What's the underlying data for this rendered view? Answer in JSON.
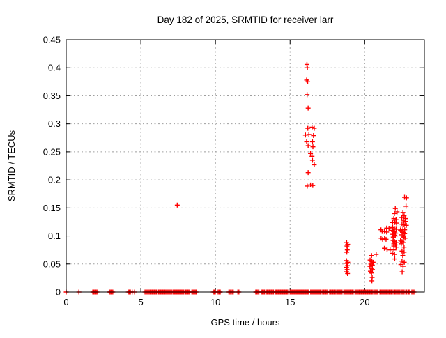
{
  "chart_data": {
    "type": "scatter",
    "title": "Day 182 of 2025, SRMTID for receiver larr",
    "xlabel": "GPS time / hours",
    "ylabel": "SRMTID / TECUs",
    "xlim": [
      0,
      24
    ],
    "ylim": [
      0,
      0.45
    ],
    "xticks": [
      0,
      5,
      10,
      15,
      20
    ],
    "xtick_labels": [
      "0",
      "5",
      "10",
      "15",
      "20"
    ],
    "yticks": [
      0,
      0.05,
      0.1,
      0.15,
      0.2,
      0.25,
      0.3,
      0.35,
      0.4,
      0.45
    ],
    "ytick_labels": [
      "0",
      "0.05",
      "0.1",
      "0.15",
      "0.2",
      "0.25",
      "0.3",
      "0.35",
      "0.4",
      "0.45"
    ],
    "grid": true,
    "grid_color": "#9e9e9e",
    "marker": "plus",
    "marker_color": "#ff0000",
    "axis_color": "#000000",
    "legend": "none",
    "series": [
      {
        "name": "SRMTID",
        "points": [
          [
            7.44,
            0.155
          ],
          [
            16.13,
            0.406
          ],
          [
            16.16,
            0.4
          ],
          [
            16.11,
            0.378
          ],
          [
            16.18,
            0.375
          ],
          [
            16.14,
            0.352
          ],
          [
            16.21,
            0.328
          ],
          [
            16.19,
            0.292
          ],
          [
            16.47,
            0.294
          ],
          [
            16.62,
            0.292
          ],
          [
            16.03,
            0.28
          ],
          [
            16.26,
            0.281
          ],
          [
            16.57,
            0.279
          ],
          [
            16.11,
            0.268
          ],
          [
            16.5,
            0.268
          ],
          [
            16.21,
            0.261
          ],
          [
            16.53,
            0.259
          ],
          [
            16.37,
            0.247
          ],
          [
            16.47,
            0.242
          ],
          [
            16.5,
            0.235
          ],
          [
            16.62,
            0.227
          ],
          [
            16.21,
            0.213
          ],
          [
            16.15,
            0.189
          ],
          [
            16.37,
            0.191
          ],
          [
            16.52,
            0.19
          ],
          [
            18.79,
            0.088
          ],
          [
            18.86,
            0.085
          ],
          [
            18.81,
            0.082
          ],
          [
            18.83,
            0.075
          ],
          [
            18.8,
            0.071
          ],
          [
            18.78,
            0.056
          ],
          [
            18.86,
            0.053
          ],
          [
            18.8,
            0.051
          ],
          [
            18.84,
            0.047
          ],
          [
            18.78,
            0.044
          ],
          [
            18.82,
            0.04
          ],
          [
            18.79,
            0.036
          ],
          [
            18.85,
            0.033
          ],
          [
            20.77,
            0.067
          ],
          [
            20.46,
            0.065
          ],
          [
            20.36,
            0.057
          ],
          [
            20.47,
            0.055
          ],
          [
            20.56,
            0.053
          ],
          [
            20.41,
            0.05
          ],
          [
            20.51,
            0.048
          ],
          [
            20.35,
            0.046
          ],
          [
            20.43,
            0.042
          ],
          [
            20.52,
            0.04
          ],
          [
            20.38,
            0.037
          ],
          [
            20.46,
            0.034
          ],
          [
            20.5,
            0.026
          ],
          [
            20.48,
            0.02
          ],
          [
            22.67,
            0.169
          ],
          [
            22.8,
            0.168
          ],
          [
            22.77,
            0.153
          ],
          [
            22.05,
            0.149
          ],
          [
            22.17,
            0.143
          ],
          [
            22.56,
            0.142
          ],
          [
            21.99,
            0.14
          ],
          [
            22.64,
            0.136
          ],
          [
            22.49,
            0.133
          ],
          [
            22.72,
            0.131
          ],
          [
            21.95,
            0.131
          ],
          [
            22.1,
            0.129
          ],
          [
            22.6,
            0.127
          ],
          [
            22.73,
            0.126
          ],
          [
            21.87,
            0.124
          ],
          [
            22.02,
            0.124
          ],
          [
            22.13,
            0.123
          ],
          [
            22.5,
            0.121
          ],
          [
            22.64,
            0.12
          ],
          [
            22.79,
            0.119
          ],
          [
            21.47,
            0.114
          ],
          [
            21.63,
            0.113
          ],
          [
            21.87,
            0.115
          ],
          [
            21.98,
            0.113
          ],
          [
            22.1,
            0.112
          ],
          [
            22.42,
            0.112
          ],
          [
            22.56,
            0.112
          ],
          [
            22.68,
            0.111
          ],
          [
            21.09,
            0.111
          ],
          [
            21.17,
            0.108
          ],
          [
            21.32,
            0.108
          ],
          [
            21.47,
            0.107
          ],
          [
            21.85,
            0.11
          ],
          [
            21.93,
            0.108
          ],
          [
            22.0,
            0.107
          ],
          [
            22.07,
            0.105
          ],
          [
            21.88,
            0.103
          ],
          [
            21.97,
            0.101
          ],
          [
            22.05,
            0.1
          ],
          [
            21.91,
            0.098
          ],
          [
            22.4,
            0.11
          ],
          [
            22.5,
            0.108
          ],
          [
            22.6,
            0.106
          ],
          [
            22.68,
            0.104
          ],
          [
            22.45,
            0.102
          ],
          [
            22.55,
            0.1
          ],
          [
            22.62,
            0.098
          ],
          [
            22.7,
            0.096
          ],
          [
            21.1,
            0.096
          ],
          [
            21.2,
            0.094
          ],
          [
            21.33,
            0.096
          ],
          [
            21.43,
            0.094
          ],
          [
            21.9,
            0.092
          ],
          [
            22.0,
            0.09
          ],
          [
            22.1,
            0.088
          ],
          [
            21.95,
            0.086
          ],
          [
            22.05,
            0.084
          ],
          [
            22.4,
            0.092
          ],
          [
            22.5,
            0.09
          ],
          [
            22.6,
            0.088
          ],
          [
            22.45,
            0.086
          ],
          [
            21.95,
            0.082
          ],
          [
            22.1,
            0.08
          ],
          [
            22.64,
            0.08
          ],
          [
            21.32,
            0.078
          ],
          [
            21.5,
            0.076
          ],
          [
            21.7,
            0.075
          ],
          [
            21.96,
            0.075
          ],
          [
            21.85,
            0.069
          ],
          [
            22.0,
            0.067
          ],
          [
            22.5,
            0.073
          ],
          [
            22.64,
            0.071
          ],
          [
            22.55,
            0.065
          ],
          [
            22.01,
            0.059
          ],
          [
            22.5,
            0.055
          ],
          [
            22.65,
            0.053
          ],
          [
            22.42,
            0.049
          ],
          [
            22.57,
            0.046
          ],
          [
            22.51,
            0.036
          ]
        ],
        "zero_singles": [
          0.0,
          0.85
        ],
        "zero_runs": [
          [
            1.78,
            2.06
          ],
          [
            2.88,
            2.98
          ],
          [
            3.05,
            3.14
          ],
          [
            4.16,
            4.32
          ],
          [
            4.42,
            4.48
          ],
          [
            4.57,
            4.6
          ],
          [
            5.28,
            6.1
          ],
          [
            6.18,
            7.1
          ],
          [
            7.18,
            7.92
          ],
          [
            8.0,
            8.28
          ],
          [
            8.42,
            8.75
          ],
          [
            9.85,
            10.0
          ],
          [
            10.18,
            10.32
          ],
          [
            10.9,
            11.05
          ],
          [
            11.12,
            11.25
          ],
          [
            11.5,
            11.62
          ],
          [
            12.7,
            12.92
          ],
          [
            13.08,
            13.3
          ],
          [
            13.4,
            13.9
          ],
          [
            14.0,
            14.9
          ],
          [
            15.0,
            16.3
          ],
          [
            16.38,
            17.1
          ],
          [
            17.18,
            17.55
          ],
          [
            17.65,
            18.1
          ],
          [
            18.2,
            18.52
          ],
          [
            18.6,
            19.25
          ],
          [
            19.35,
            20.6
          ],
          [
            20.68,
            20.93
          ],
          [
            21.02,
            21.45
          ],
          [
            21.5,
            21.9
          ],
          [
            21.95,
            22.1
          ],
          [
            22.22,
            22.38
          ],
          [
            22.5,
            22.68
          ],
          [
            22.75,
            22.85
          ],
          [
            22.95,
            23.06
          ],
          [
            23.16,
            23.32
          ]
        ]
      }
    ]
  }
}
